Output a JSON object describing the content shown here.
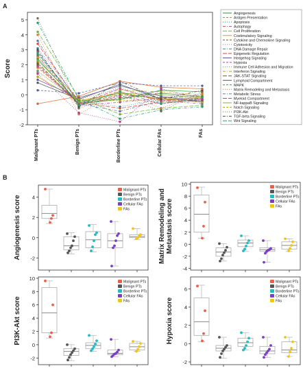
{
  "panel_labels": {
    "a": "A",
    "b": "B"
  },
  "chart_data": [
    {
      "type": "line",
      "panel": "A",
      "ylabel": "Score",
      "ylim": [
        -2,
        5.5
      ],
      "yticks": [
        -2,
        -1,
        0,
        1,
        2,
        3,
        4,
        5
      ],
      "categories": [
        "Malignant\nPTs",
        "Benign\nPTs",
        "Borderline\nPTs",
        "Cellular\nFAs",
        "FAs"
      ],
      "legend_position": "right",
      "colors": [
        "#1f9a2f",
        "#e87722",
        "#2d7fc1",
        "#b0409a",
        "#6bb82e",
        "#d4a200",
        "#7b5a2b",
        "#8a8a8a",
        "#1d9e74",
        "#e0452b",
        "#5b55a6",
        "#c43b8d",
        "#6aa33a",
        "#c89c16",
        "#6d5b3a",
        "#555555",
        "#2f9e3f",
        "#e57b2a",
        "#6173b4",
        "#d23d87",
        "#7fae3a",
        "#c9a01a",
        "#7b6a46",
        "#4a4a4a",
        "#2a9b79",
        "#e06a2e",
        "#4f5fa8",
        "#c7348b"
      ],
      "series": [
        {
          "name": "Angiogenesis",
          "values": [
            2.4,
            -0.6,
            -0.3,
            0.3,
            0.2
          ]
        },
        {
          "name": "Antigen Presentation",
          "values": [
            1.8,
            -0.5,
            0.2,
            -0.4,
            -0.2
          ]
        },
        {
          "name": "Apoptosis",
          "values": [
            3.1,
            -0.4,
            -0.8,
            -0.3,
            -0.4
          ]
        },
        {
          "name": "Autophagy",
          "values": [
            2.6,
            -0.7,
            -0.5,
            -0.2,
            -0.3
          ]
        },
        {
          "name": "Cell Proliferation",
          "values": [
            4.2,
            -0.2,
            -1.3,
            -0.9,
            -0.7
          ]
        },
        {
          "name": "Costimulatory Signaling",
          "values": [
            1.2,
            -0.4,
            0.1,
            -0.3,
            -0.2
          ]
        },
        {
          "name": "Cytokine and Chemokine Signaling",
          "values": [
            2.0,
            -0.6,
            -0.2,
            0.1,
            -0.1
          ]
        },
        {
          "name": "Cytotoxicity",
          "values": [
            1.5,
            -0.3,
            0.4,
            -0.2,
            -0.3
          ]
        },
        {
          "name": "DNA Damage Repair",
          "values": [
            4.8,
            -0.3,
            -1.6,
            -1.0,
            -0.8
          ]
        },
        {
          "name": "Epigenetic Regulation",
          "values": [
            3.4,
            -0.5,
            -0.9,
            -0.5,
            -0.4
          ]
        },
        {
          "name": "Hedgehog Signaling",
          "values": [
            1.0,
            -0.2,
            0.6,
            -0.1,
            -0.5
          ]
        },
        {
          "name": "Hypoxia",
          "values": [
            2.9,
            -0.7,
            -0.1,
            -0.6,
            -0.3
          ]
        },
        {
          "name": "Immune Cell Adhesion and Migration",
          "values": [
            1.6,
            -0.5,
            0.5,
            -0.5,
            -0.4
          ]
        },
        {
          "name": "Interferon Signaling",
          "values": [
            2.2,
            -0.8,
            0.3,
            0.2,
            0.0
          ]
        },
        {
          "name": "JAK-STAT Signaling",
          "values": [
            2.1,
            -0.6,
            0.0,
            -0.2,
            -0.1
          ]
        },
        {
          "name": "Lymphoid Compartment",
          "values": [
            0.8,
            -0.3,
            0.7,
            -0.3,
            -0.4
          ]
        },
        {
          "name": "MAPK",
          "values": [
            2.7,
            -0.4,
            -0.3,
            0.1,
            -0.1
          ]
        },
        {
          "name": "Matrix Remodeling and Metastasis",
          "values": [
            4.0,
            -1.3,
            0.2,
            -0.9,
            0.1
          ]
        },
        {
          "name": "Metabolic Stress",
          "values": [
            3.6,
            -0.6,
            -1.1,
            -0.4,
            -0.6
          ]
        },
        {
          "name": "Myeloid Compartment",
          "values": [
            1.9,
            -0.6,
            0.4,
            -0.4,
            -0.3
          ]
        },
        {
          "name": "NF-kappaB Signaling",
          "values": [
            2.3,
            -0.5,
            0.1,
            0.0,
            -0.2
          ]
        },
        {
          "name": "Notch Signaling",
          "values": [
            2.5,
            -0.3,
            -0.4,
            -0.3,
            -0.5
          ]
        },
        {
          "name": "PI3K-Akt",
          "values": [
            5.1,
            -0.9,
            0.0,
            -1.1,
            0.2
          ]
        },
        {
          "name": "TGF-beta Signaling",
          "values": [
            3.0,
            -0.8,
            0.9,
            -0.3,
            0.3
          ]
        },
        {
          "name": "Wnt Signaling",
          "values": [
            2.8,
            -0.7,
            0.2,
            -0.6,
            -0.2
          ]
        },
        {
          "name": "",
          "values": [
            -0.6,
            -0.1,
            0.9,
            0.5,
            0.4
          ]
        },
        {
          "name": "",
          "values": [
            0.3,
            0.1,
            0.8,
            0.6,
            0.6
          ]
        },
        {
          "name": "",
          "values": [
            1.4,
            -1.2,
            -1.8,
            0.4,
            -0.3
          ]
        }
      ]
    },
    {
      "type": "box",
      "panel": "B",
      "ylabel": "Angiogenesis score",
      "ylim": [
        -3.2,
        5.2
      ],
      "yticks": [
        -2,
        0,
        2,
        4
      ],
      "legend": [
        "Malignant PTs",
        "Benign PTs",
        "Borderline PTs",
        "Cellular FAs",
        "FAs"
      ],
      "colors": [
        "#e8604c",
        "#555555",
        "#21bcc4",
        "#7b3fc4",
        "#f0c419"
      ],
      "groups": [
        {
          "name": "Malignant PTs",
          "box": [
            1.4,
            1.9,
            2.4,
            3.2,
            4.8
          ],
          "points": [
            4.8,
            2.2,
            1.9,
            1.5
          ]
        },
        {
          "name": "Benign PTs",
          "box": [
            -1.6,
            -1.2,
            -0.8,
            0.1,
            0.5
          ],
          "points": [
            0.4,
            0.1,
            -0.3,
            -0.8,
            -1.0,
            -1.3,
            -1.5
          ]
        },
        {
          "name": "Borderline PTs",
          "box": [
            -1.4,
            -1.0,
            -0.2,
            0.6,
            1.3
          ],
          "points": [
            1.2,
            0.5,
            0.3,
            -0.3,
            -0.9,
            -1.3
          ]
        },
        {
          "name": "Cellular FAs",
          "box": [
            -2.8,
            -1.0,
            -0.3,
            0.4,
            1.6
          ],
          "points": [
            1.6,
            0.4,
            0.2,
            -0.3,
            -0.8,
            -1.0,
            -2.8
          ]
        },
        {
          "name": "FAs",
          "box": [
            -0.2,
            0.0,
            0.1,
            0.3,
            0.9
          ],
          "points": [
            0.9,
            0.3,
            0.2,
            0.0,
            -0.1
          ]
        }
      ]
    },
    {
      "type": "box",
      "panel": "B",
      "ylabel": "Matrix Remodeling and\nMetastasis score",
      "ylim": [
        -4.3,
        10.3
      ],
      "yticks": [
        -4,
        -2,
        0,
        2,
        4,
        6,
        8,
        10
      ],
      "legend": [
        "Malignant PTs",
        "Benign PTs",
        "Borderline PTs",
        "Cellular FAs",
        "FAs"
      ],
      "colors": [
        "#e8604c",
        "#555555",
        "#21bcc4",
        "#7b3fc4",
        "#f0c419"
      ],
      "groups": [
        {
          "name": "Malignant PTs",
          "box": [
            1.0,
            2.0,
            5.0,
            8.2,
            9.5
          ],
          "points": [
            9.4,
            7.0,
            3.0,
            1.0
          ]
        },
        {
          "name": "Benign PTs",
          "box": [
            -2.8,
            -2.0,
            -1.3,
            -0.6,
            0.1
          ],
          "points": [
            0.1,
            -0.5,
            -1.0,
            -1.4,
            -1.8,
            -2.4,
            -2.8
          ]
        },
        {
          "name": "Borderline PTs",
          "box": [
            -1.2,
            -0.4,
            0.2,
            0.7,
            1.4
          ],
          "points": [
            1.4,
            0.6,
            0.2,
            -0.3,
            -0.8,
            -1.1
          ]
        },
        {
          "name": "Cellular FAs",
          "box": [
            -3.0,
            -1.2,
            -0.9,
            -0.6,
            0.6
          ],
          "points": [
            0.6,
            -0.7,
            -0.9,
            -1.0,
            -1.2,
            -1.5,
            -3.0
          ]
        },
        {
          "name": "FAs",
          "box": [
            -1.2,
            -0.8,
            -0.2,
            0.4,
            0.9
          ],
          "points": [
            0.9,
            0.4,
            -0.2,
            -0.7,
            -1.1
          ]
        }
      ]
    },
    {
      "type": "box",
      "panel": "B",
      "ylabel": "PI3K-Akt score",
      "ylim": [
        -3,
        10.2
      ],
      "yticks": [
        -2,
        0,
        2,
        4,
        6,
        8,
        10
      ],
      "legend": [
        "Malignant PTs",
        "Benign PTs",
        "Borderline PTs",
        "Cellular FAs",
        "FAs"
      ],
      "colors": [
        "#e8604c",
        "#555555",
        "#21bcc4",
        "#7b3fc4",
        "#f0c419"
      ],
      "groups": [
        {
          "name": "Malignant PTs",
          "box": [
            1.0,
            1.8,
            4.8,
            8.6,
            9.6
          ],
          "points": [
            9.6,
            6.0,
            1.8,
            1.2
          ]
        },
        {
          "name": "Benign PTs",
          "box": [
            -2.4,
            -1.6,
            -1.0,
            -0.6,
            0.0
          ],
          "points": [
            0.0,
            -0.6,
            -0.9,
            -1.2,
            -1.5,
            -1.9,
            -2.3
          ]
        },
        {
          "name": "Borderline PTs",
          "box": [
            -1.0,
            -0.6,
            -0.1,
            0.3,
            1.4
          ],
          "points": [
            1.4,
            0.6,
            0.1,
            -0.3,
            -0.6,
            -0.9
          ]
        },
        {
          "name": "Cellular FAs",
          "box": [
            -1.8,
            -1.5,
            -1.3,
            -0.8,
            0.8
          ],
          "points": [
            0.8,
            -0.8,
            -1.1,
            -1.3,
            -1.4,
            -1.6,
            -1.8
          ]
        },
        {
          "name": "FAs",
          "box": [
            -1.0,
            -0.8,
            -0.3,
            0.2,
            0.5
          ],
          "points": [
            0.5,
            0.2,
            -0.3,
            -0.7,
            -1.0
          ]
        }
      ]
    },
    {
      "type": "box",
      "panel": "B",
      "ylabel": "Hypoxia score",
      "ylim": [
        -2.3,
        7.3
      ],
      "yticks": [
        -2,
        0,
        2,
        4,
        6
      ],
      "legend": [
        "Malignant PTs",
        "Benign PTs",
        "Borderline PTs",
        "Cellular FAs",
        "FAs"
      ],
      "colors": [
        "#e8604c",
        "#555555",
        "#21bcc4",
        "#7b3fc4",
        "#f0c419"
      ],
      "groups": [
        {
          "name": "Malignant PTs",
          "box": [
            0.2,
            0.9,
            2.4,
            5.0,
            6.4
          ],
          "points": [
            6.3,
            3.6,
            1.1,
            0.3
          ]
        },
        {
          "name": "Benign PTs",
          "box": [
            -1.6,
            -0.8,
            -0.5,
            -0.2,
            0.7
          ],
          "points": [
            0.7,
            -0.2,
            -0.4,
            -0.6,
            -0.8,
            -1.1,
            -1.5
          ]
        },
        {
          "name": "Borderline PTs",
          "box": [
            -0.7,
            -0.3,
            0.1,
            0.6,
            1.2
          ],
          "points": [
            1.2,
            0.6,
            0.2,
            -0.2,
            -0.5,
            -0.7
          ]
        },
        {
          "name": "Cellular FAs",
          "box": [
            -1.5,
            -1.1,
            -0.8,
            -0.3,
            0.7
          ],
          "points": [
            0.7,
            -0.2,
            -0.6,
            -0.8,
            -1.0,
            -1.2,
            -1.5
          ]
        },
        {
          "name": "FAs",
          "box": [
            -1.4,
            -1.0,
            -0.7,
            0.2,
            0.7
          ],
          "points": [
            0.7,
            0.2,
            -0.5,
            -0.9,
            -1.4
          ]
        }
      ]
    }
  ]
}
